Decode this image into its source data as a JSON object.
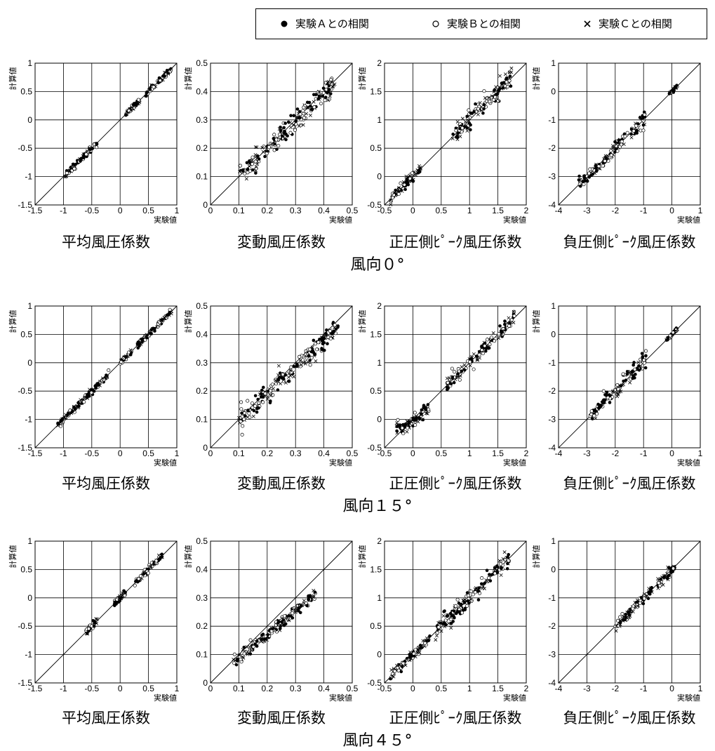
{
  "legend": {
    "items": [
      {
        "marker": "filled-circle",
        "label": "実験Ａとの相関"
      },
      {
        "marker": "open-circle",
        "label": "実験Ｂとの相関"
      },
      {
        "marker": "cross",
        "label": "実験Ｃとの相関"
      }
    ]
  },
  "axis_label_x": "実験値",
  "axis_label_y_first": "計算値",
  "axis_label_y": "計算値",
  "row_titles": [
    "風向０°",
    "風向１５°",
    "風向４５°"
  ],
  "colors": {
    "ink": "#000000",
    "background": "#ffffff"
  },
  "chart_data": [
    {
      "type": "scatter",
      "row": "風向０°",
      "title": "平均風圧係数",
      "xlabel": "実験値",
      "ylabel": "計算値",
      "xlim": [
        -1.5,
        1
      ],
      "ylim": [
        -1.5,
        1
      ],
      "xticks": [
        "-1.5",
        "-1",
        "-0.5",
        "0",
        "0.5",
        "1"
      ],
      "yticks": [
        "-1.5",
        "-1",
        "-0.5",
        "0",
        "0.5",
        "1"
      ],
      "grid": true,
      "diagonal": true,
      "clusters": [
        {
          "x": [
            -1.0,
            -0.4
          ],
          "slope": 1.0,
          "spread": 0.05
        },
        {
          "x": [
            0.1,
            0.35
          ],
          "slope": 1.0,
          "spread": 0.03
        },
        {
          "x": [
            0.45,
            0.9
          ],
          "slope": 1.0,
          "spread": 0.04
        }
      ]
    },
    {
      "type": "scatter",
      "row": "風向０°",
      "title": "変動風圧係数",
      "xlabel": "実験値",
      "ylabel": "計算値",
      "xlim": [
        0,
        0.5
      ],
      "ylim": [
        0,
        0.5
      ],
      "xticks": [
        "0",
        "0.1",
        "0.2",
        "0.3",
        "0.4",
        "0.5"
      ],
      "yticks": [
        "0",
        "0.1",
        "0.2",
        "0.3",
        "0.4",
        "0.5"
      ],
      "grid": true,
      "diagonal": true,
      "clusters": [
        {
          "x": [
            0.1,
            0.44
          ],
          "slope": 0.98,
          "spread": 0.03
        }
      ]
    },
    {
      "type": "scatter",
      "row": "風向０°",
      "title": "正圧側ﾋﾟｰｸ風圧係数",
      "xlabel": "実験値",
      "ylabel": "計算値",
      "xlim": [
        -0.5,
        2
      ],
      "ylim": [
        -0.5,
        2
      ],
      "xticks": [
        "-0.5",
        "0",
        "0.5",
        "1",
        "1.5",
        "2"
      ],
      "yticks": [
        "-0.5",
        "0",
        "0.5",
        "1",
        "1.5",
        "2"
      ],
      "grid": true,
      "diagonal": true,
      "clusters": [
        {
          "x": [
            -0.4,
            0.15
          ],
          "slope": 1.0,
          "spread": 0.08
        },
        {
          "x": [
            0.7,
            1.75
          ],
          "slope": 1.0,
          "spread": 0.15
        }
      ]
    },
    {
      "type": "scatter",
      "row": "風向０°",
      "title": "負圧側ﾋﾟｰｸ風圧係数",
      "xlabel": "実験値",
      "ylabel": "計算値",
      "xlim": [
        -4,
        1
      ],
      "ylim": [
        -4,
        1
      ],
      "xticks": [
        "-4",
        "-3",
        "-2",
        "-1",
        "0",
        "1"
      ],
      "yticks": [
        "-4",
        "-3",
        "-2",
        "-1",
        "0",
        "1"
      ],
      "grid": true,
      "diagonal": true,
      "clusters": [
        {
          "x": [
            -3.3,
            -0.9
          ],
          "slope": 1.0,
          "spread": 0.22
        },
        {
          "x": [
            -0.1,
            0.2
          ],
          "slope": 1.0,
          "spread": 0.05
        }
      ]
    },
    {
      "type": "scatter",
      "row": "風向１５°",
      "title": "平均風圧係数",
      "xlabel": "実験値",
      "ylabel": "計算値",
      "xlim": [
        -1.5,
        1
      ],
      "ylim": [
        -1.5,
        1
      ],
      "xticks": [
        "-1.5",
        "-1",
        "-0.5",
        "0",
        "0.5",
        "1"
      ],
      "yticks": [
        "-1.5",
        "-1",
        "-0.5",
        "0",
        "0.5",
        "1"
      ],
      "grid": true,
      "diagonal": true,
      "clusters": [
        {
          "x": [
            -1.1,
            -0.2
          ],
          "slope": 1.0,
          "spread": 0.05
        },
        {
          "x": [
            0.0,
            0.2
          ],
          "slope": 1.0,
          "spread": 0.03
        },
        {
          "x": [
            0.3,
            0.92
          ],
          "slope": 1.0,
          "spread": 0.04
        }
      ]
    },
    {
      "type": "scatter",
      "row": "風向１５°",
      "title": "変動風圧係数",
      "xlabel": "実験値",
      "ylabel": "計算値",
      "xlim": [
        0,
        0.5
      ],
      "ylim": [
        0,
        0.5
      ],
      "xticks": [
        "0",
        "0.1",
        "0.2",
        "0.3",
        "0.4",
        "0.5"
      ],
      "yticks": [
        "0",
        "0.1",
        "0.2",
        "0.3",
        "0.4",
        "0.5"
      ],
      "grid": true,
      "diagonal": true,
      "clusters": [
        {
          "x": [
            0.1,
            0.45
          ],
          "slope": 0.95,
          "spread": 0.03
        }
      ]
    },
    {
      "type": "scatter",
      "row": "風向１５°",
      "title": "正圧側ﾋﾟｰｸ風圧係数",
      "xlabel": "実験値",
      "ylabel": "計算値",
      "xlim": [
        -0.5,
        2
      ],
      "ylim": [
        -0.5,
        2
      ],
      "xticks": [
        "-0.5",
        "0",
        "0.5",
        "1",
        "1.5",
        "2"
      ],
      "yticks": [
        "-0.5",
        "0",
        "0.5",
        "1",
        "1.5",
        "2"
      ],
      "grid": true,
      "diagonal": true,
      "clusters": [
        {
          "x": [
            -0.3,
            0.3
          ],
          "slope": 0.6,
          "spread": 0.1
        },
        {
          "x": [
            0.6,
            1.8
          ],
          "slope": 1.0,
          "spread": 0.1
        }
      ]
    },
    {
      "type": "scatter",
      "row": "風向１５°",
      "title": "負圧側ﾋﾟｰｸ風圧係数",
      "xlabel": "実験値",
      "ylabel": "計算値",
      "xlim": [
        -4,
        1
      ],
      "ylim": [
        -4,
        1
      ],
      "xticks": [
        "-4",
        "-3",
        "-2",
        "-1",
        "0",
        "1"
      ],
      "yticks": [
        "-4",
        "-3",
        "-2",
        "-1",
        "0",
        "1"
      ],
      "grid": true,
      "diagonal": true,
      "clusters": [
        {
          "x": [
            -2.9,
            -0.9
          ],
          "slope": 1.0,
          "spread": 0.25
        },
        {
          "x": [
            -0.2,
            0.2
          ],
          "slope": 1.0,
          "spread": 0.05
        }
      ]
    },
    {
      "type": "scatter",
      "row": "風向４５°",
      "title": "平均風圧係数",
      "xlabel": "実験値",
      "ylabel": "計算値",
      "xlim": [
        -1.5,
        1
      ],
      "ylim": [
        -1.5,
        1
      ],
      "xticks": [
        "-1.5",
        "-1",
        "-0.5",
        "0",
        "0.5",
        "1"
      ],
      "yticks": [
        "-1.5",
        "-1",
        "-0.5",
        "0",
        "0.5",
        "1"
      ],
      "grid": true,
      "diagonal": true,
      "clusters": [
        {
          "x": [
            -0.6,
            -0.4
          ],
          "slope": 1.0,
          "spread": 0.05
        },
        {
          "x": [
            -0.1,
            0.1
          ],
          "slope": 1.0,
          "spread": 0.04
        },
        {
          "x": [
            0.25,
            0.75
          ],
          "slope": 1.0,
          "spread": 0.04
        }
      ]
    },
    {
      "type": "scatter",
      "row": "風向４５°",
      "title": "変動風圧係数",
      "xlabel": "実験値",
      "ylabel": "計算値",
      "xlim": [
        0,
        0.5
      ],
      "ylim": [
        0,
        0.5
      ],
      "xticks": [
        "0",
        "0.1",
        "0.2",
        "0.3",
        "0.4",
        "0.5"
      ],
      "yticks": [
        "0",
        "0.1",
        "0.2",
        "0.3",
        "0.4",
        "0.5"
      ],
      "grid": true,
      "diagonal": true,
      "clusters": [
        {
          "x": [
            0.08,
            0.37
          ],
          "slope": 0.85,
          "spread": 0.02
        }
      ]
    },
    {
      "type": "scatter",
      "row": "風向４５°",
      "title": "正圧側ﾋﾟｰｸ風圧係数",
      "xlabel": "実験値",
      "ylabel": "計算値",
      "xlim": [
        -0.5,
        2
      ],
      "ylim": [
        -0.5,
        2
      ],
      "xticks": [
        "-0.5",
        "0",
        "0.5",
        "1",
        "1.5",
        "2"
      ],
      "yticks": [
        "-0.5",
        "0",
        "0.5",
        "1",
        "1.5",
        "2"
      ],
      "grid": true,
      "diagonal": true,
      "clusters": [
        {
          "x": [
            -0.4,
            0.3
          ],
          "slope": 1.0,
          "spread": 0.06
        },
        {
          "x": [
            0.4,
            1.7
          ],
          "slope": 1.0,
          "spread": 0.12
        }
      ]
    },
    {
      "type": "scatter",
      "row": "風向４５°",
      "title": "負圧側ﾋﾟｰｸ風圧係数",
      "xlabel": "実験値",
      "ylabel": "計算値",
      "xlim": [
        -4,
        1
      ],
      "ylim": [
        -4,
        1
      ],
      "xticks": [
        "-4",
        "-3",
        "-2",
        "-1",
        "0",
        "1"
      ],
      "yticks": [
        "-4",
        "-3",
        "-2",
        "-1",
        "0",
        "1"
      ],
      "grid": true,
      "diagonal": true,
      "clusters": [
        {
          "x": [
            -2.0,
            -0.7
          ],
          "slope": 1.0,
          "spread": 0.15
        },
        {
          "x": [
            -0.5,
            0.1
          ],
          "slope": 1.0,
          "spread": 0.15
        }
      ]
    }
  ]
}
